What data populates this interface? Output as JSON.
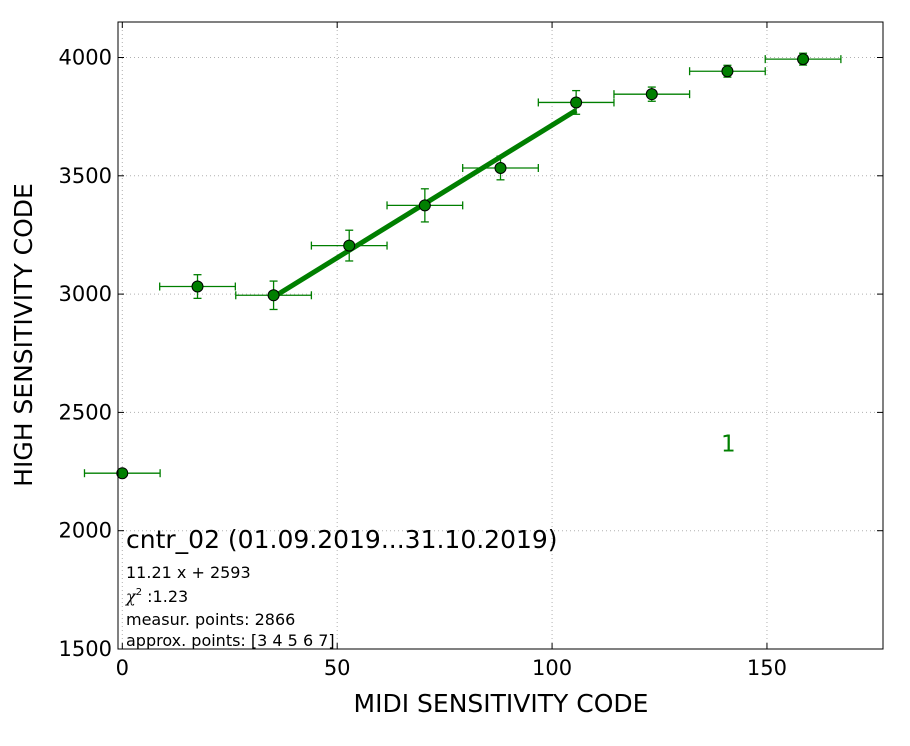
{
  "chart_data": {
    "type": "scatter",
    "xlabel": "MIDI SENSITIVITY CODE",
    "ylabel": "HIGH SENSITIVITY CODE",
    "xlim": [
      -1,
      177
    ],
    "ylim": [
      1500,
      4150
    ],
    "xticks": [
      0,
      50,
      100,
      150
    ],
    "yticks": [
      1500,
      2000,
      2500,
      3000,
      3500,
      4000
    ],
    "grid": true,
    "series_color": "#007f00",
    "points": [
      {
        "x": 0.0,
        "y": 2243,
        "xerr": 8.8,
        "yerr": 0
      },
      {
        "x": 17.5,
        "y": 3032,
        "xerr": 8.8,
        "yerr": 50
      },
      {
        "x": 35.2,
        "y": 2995,
        "xerr": 8.8,
        "yerr": 60
      },
      {
        "x": 52.8,
        "y": 3205,
        "xerr": 8.8,
        "yerr": 65
      },
      {
        "x": 70.4,
        "y": 3375,
        "xerr": 8.8,
        "yerr": 70
      },
      {
        "x": 88.0,
        "y": 3533,
        "xerr": 8.8,
        "yerr": 50
      },
      {
        "x": 105.6,
        "y": 3810,
        "xerr": 8.8,
        "yerr": 50
      },
      {
        "x": 123.2,
        "y": 3845,
        "xerr": 8.8,
        "yerr": 30
      },
      {
        "x": 140.8,
        "y": 3942,
        "xerr": 8.8,
        "yerr": 25
      },
      {
        "x": 158.4,
        "y": 3993,
        "xerr": 8.8,
        "yerr": 25
      }
    ],
    "fit": {
      "slope": 11.21,
      "intercept": 2593,
      "x_range": [
        35.2,
        105.6
      ]
    },
    "series_label": "1",
    "series_label_pos": [
      141,
      2335
    ],
    "annotations": {
      "title": "cntr_02 (01.09.2019...31.10.2019)",
      "equation": "11.21 x + 2593",
      "chi_symbol": "χ",
      "chi_sup": "2",
      "chi_value": " :1.23",
      "measur_points": "measur. points: 2866",
      "approx_points": "approx. points: [3 4 5 6 7]"
    }
  }
}
